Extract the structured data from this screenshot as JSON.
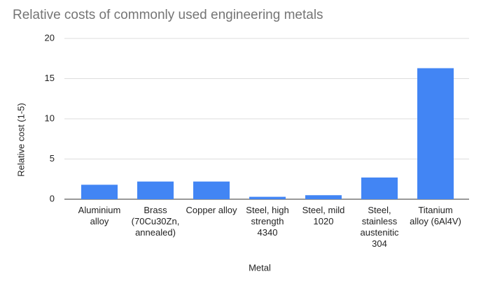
{
  "chart_data": {
    "type": "bar",
    "title": "Relative costs of commonly used engineering metals",
    "x_label": "Metal",
    "y_label": "Relative cost (1-5)",
    "categories": [
      "Aluminium alloy",
      "Brass (70Cu30Zn, annealed)",
      "Copper alloy",
      "Steel, high strength 4340",
      "Steel, mild 1020",
      "Steel, stainless austenitic 304",
      "Titanium alloy (6Al4V)"
    ],
    "values": [
      1.8,
      2.2,
      2.2,
      0.3,
      0.5,
      2.7,
      16.3
    ],
    "color": "#4285f4",
    "ylim": [
      0,
      20
    ],
    "yticks": [
      0,
      5,
      10,
      15,
      20
    ],
    "grid": true
  }
}
